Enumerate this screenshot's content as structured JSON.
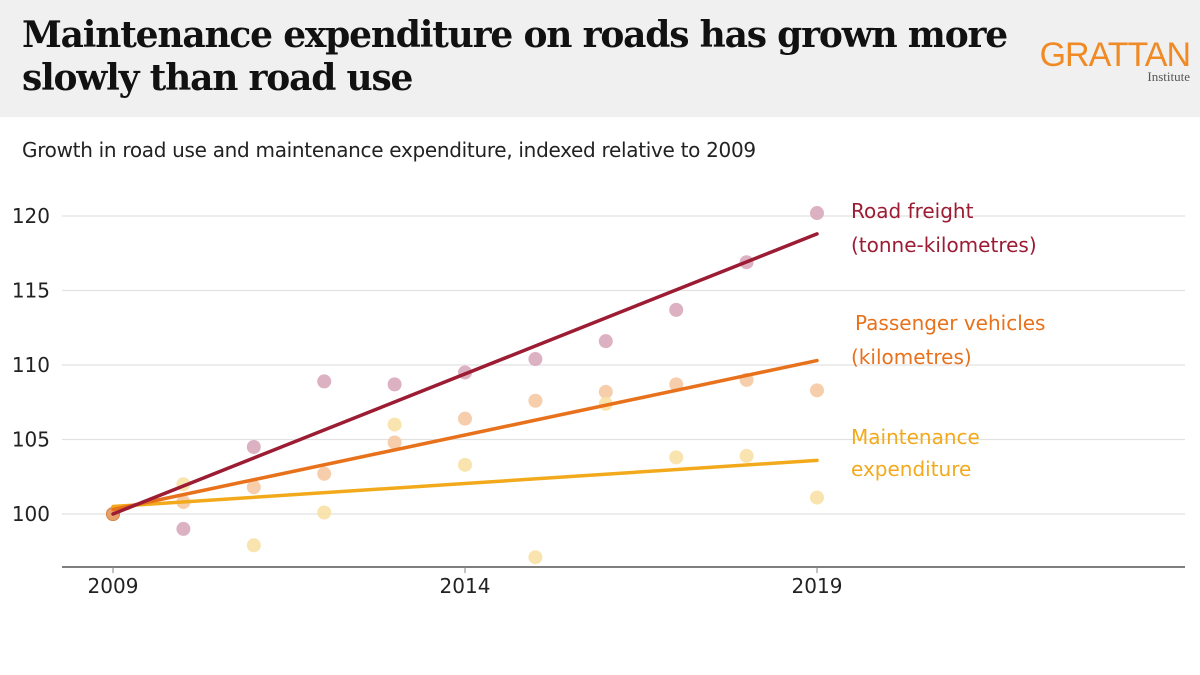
{
  "header": {
    "title": "Maintenance expenditure on roads has grown more slowly than road use",
    "logo": {
      "name": "GRATTAN",
      "sub": "Institute",
      "color": "#f08a24"
    }
  },
  "chart_data": {
    "type": "scatter",
    "title": "Maintenance expenditure on roads has grown more slowly than road use",
    "subtitle": "Growth in road use and maintenance expenditure, indexed relative to 2009",
    "xlabel": "",
    "ylabel": "",
    "xlim": [
      2009,
      2024.2
    ],
    "ylim": [
      96.5,
      123
    ],
    "x_ticks": [
      2009,
      2014,
      2019
    ],
    "y_ticks": [
      100,
      105,
      110,
      115,
      120
    ],
    "grid": true,
    "legend": "direct labels at right end of each trend line",
    "x": [
      2009,
      2010,
      2011,
      2012,
      2013,
      2014,
      2015,
      2016,
      2017,
      2018,
      2019
    ],
    "series": [
      {
        "name": "Road freight (tonne-kilometres)",
        "label_lines": [
          "Road freight",
          "(tonne-kilometres)"
        ],
        "color": "#9b1c33",
        "dot_color": "#d9a9bb",
        "values": [
          100,
          99.0,
          104.5,
          108.9,
          108.7,
          109.5,
          110.4,
          111.6,
          113.7,
          116.9,
          120.2
        ],
        "trend": {
          "start": [
            2009,
            100
          ],
          "end": [
            2019,
            118.8
          ]
        }
      },
      {
        "name": "Passenger vehicles (kilometres)",
        "label_lines": [
          "Passenger vehicles",
          "(kilometres)"
        ],
        "color": "#e8711c",
        "dot_color": "#f6c9a4",
        "values": [
          100,
          100.8,
          101.8,
          102.7,
          104.8,
          106.4,
          107.6,
          108.2,
          108.7,
          109.0,
          108.3
        ],
        "trend": {
          "start": [
            2009,
            100.3
          ],
          "end": [
            2019,
            110.3
          ]
        }
      },
      {
        "name": "Maintenance expenditure",
        "label_lines": [
          "Maintenance",
          "expenditure"
        ],
        "color": "#f2aa1c",
        "dot_color": "#f9e1a6",
        "values": [
          100,
          102.0,
          97.9,
          100.1,
          106.0,
          103.3,
          97.1,
          107.4,
          103.8,
          103.9,
          101.1
        ],
        "trend": {
          "start": [
            2009,
            100.5
          ],
          "end": [
            2019,
            103.6
          ]
        }
      }
    ]
  }
}
